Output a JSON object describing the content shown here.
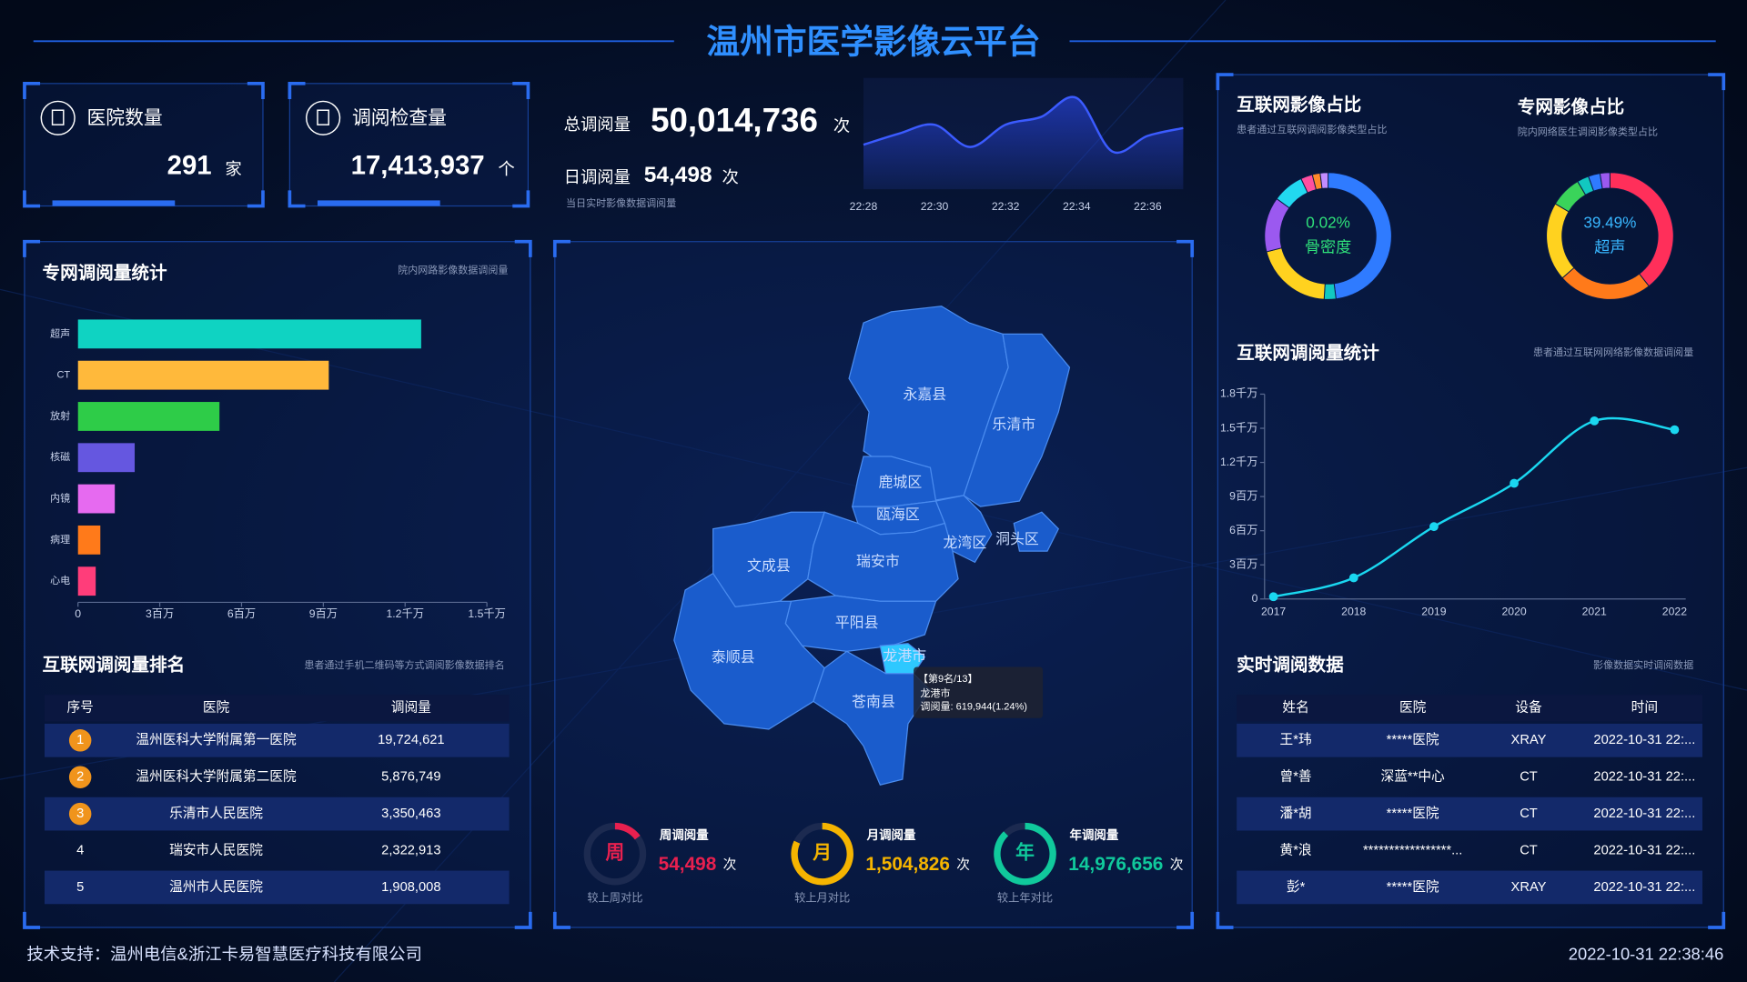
{
  "header": {
    "title": "温州市医学影像云平台"
  },
  "cards": [
    {
      "label": "医院数量",
      "value": "291",
      "unit": "家"
    },
    {
      "label": "调阅检查量",
      "value": "17,413,937",
      "unit": "个"
    }
  ],
  "totals": {
    "total_label": "总调阅量",
    "total_value": "50,014,736",
    "total_unit": "次",
    "daily_label": "日调阅量",
    "daily_value": "54,498",
    "daily_unit": "次",
    "note": "当日实时影像数据调阅量"
  },
  "chart_data": [
    {
      "type": "area",
      "categories": [
        "22:28",
        null,
        "22:30",
        null,
        "22:32",
        null,
        "22:34",
        null,
        "22:36",
        null
      ],
      "values": [
        20,
        30,
        38,
        18,
        38,
        45,
        62,
        14,
        28,
        35
      ],
      "ylim": [
        0,
        70
      ],
      "color": "#3b5bff"
    },
    {
      "type": "bar",
      "orientation": "horizontal",
      "title": "专网调阅量统计",
      "subtitle": "院内网路影像数据调阅量",
      "categories": [
        "超声",
        "CT",
        "放射",
        "核磁",
        "内镜",
        "病理",
        "心电"
      ],
      "values": [
        12590000,
        9200000,
        5190000,
        2080000,
        1350000,
        820000,
        650000
      ],
      "colors": [
        "#0fd3c2",
        "#ffb93b",
        "#2ecc48",
        "#6557e0",
        "#e66af0",
        "#ff7a1a",
        "#ff3d7a"
      ],
      "xlim": [
        0,
        15000000
      ],
      "xticks": [
        0,
        {
          "value": 3000000,
          "label": "3百万"
        },
        {
          "value": 6000000,
          "label": "6百万"
        },
        {
          "value": 9000000,
          "label": "9百万"
        },
        {
          "value": 12000000,
          "label": "1.2千万"
        },
        {
          "value": 15000000,
          "label": "1.5千万"
        }
      ]
    },
    {
      "type": "pie",
      "title": "互联网影像占比",
      "subtitle": "患者通过互联网调阅影像类型占比",
      "center_value": "0.02%",
      "center_label": "骨密度",
      "values": [
        48,
        3,
        20,
        14,
        8,
        3,
        2,
        2
      ],
      "colors": [
        "#2f7bff",
        "#12c8c0",
        "#ffd21f",
        "#9b59f0",
        "#22d8f0",
        "#ff4fa0",
        "#ff8a2a",
        "#c28cff"
      ]
    },
    {
      "type": "pie",
      "title": "专网影像占比",
      "subtitle": "院内网络医生调阅影像类型占比",
      "center_value": "39.49%",
      "center_label": "超声",
      "values": [
        39.49,
        24,
        20,
        8,
        3,
        3,
        2.51
      ],
      "colors": [
        "#ff2f5a",
        "#ff7a1a",
        "#ffd21f",
        "#3ad45a",
        "#12c8c0",
        "#2f7bff",
        "#9b59f0"
      ]
    },
    {
      "type": "line",
      "title": "互联网调阅量统计",
      "subtitle": "患者通过互联网网络影像数据调阅量",
      "categories": [
        "2017",
        "2018",
        "2019",
        "2020",
        "2021",
        "2022"
      ],
      "values": [
        200000,
        1860000,
        6360000,
        10170000,
        15650000,
        14870000
      ],
      "color": "#1ad7f0",
      "ylim": [
        0,
        18000000
      ],
      "yticks": [
        0,
        {
          "value": 3000000,
          "label": "3百万"
        },
        {
          "value": 6000000,
          "label": "6百万"
        },
        {
          "value": 9000000,
          "label": "9百万"
        },
        {
          "value": 12000000,
          "label": "1.2千万"
        },
        {
          "value": 15000000,
          "label": "1.5千万"
        },
        {
          "value": 18000000,
          "label": "1.8千万"
        }
      ]
    }
  ],
  "map": {
    "regions": [
      "永嘉县",
      "乐清市",
      "鹿城区",
      "瓯海区",
      "龙湾区",
      "洞头区",
      "文成县",
      "瑞安市",
      "平阳县",
      "泰顺县",
      "龙港市",
      "苍南县"
    ],
    "highlighted_region": 10,
    "tooltip": {
      "rank": "【第9名/13】",
      "name": "龙港市",
      "value": "调阅量: 619,944(1.24%)"
    }
  },
  "gauges": [
    {
      "char": "周",
      "label": "周调阅量",
      "value": "54,498",
      "unit": "次",
      "compare": "较上周对比",
      "color": "#e8204f",
      "ratio": 15
    },
    {
      "char": "月",
      "label": "月调阅量",
      "value": "1,504,826",
      "unit": "次",
      "compare": "较上月对比",
      "color": "#f5b400",
      "ratio": 82
    },
    {
      "char": "年",
      "label": "年调阅量",
      "value": "14,976,656",
      "unit": "次",
      "compare": "较上年对比",
      "color": "#10c99c",
      "ratio": 88
    }
  ],
  "ranking": {
    "title": "互联网调阅量排名",
    "subtitle": "患者通过手机二维码等方式调阅影像数据排名",
    "columns": [
      "序号",
      "医院",
      "调阅量"
    ],
    "rows": [
      [
        "1",
        "温州医科大学附属第一医院",
        "19,724,621"
      ],
      [
        "2",
        "温州医科大学附属第二医院",
        "5,876,749"
      ],
      [
        "3",
        "乐清市人民医院",
        "3,350,463"
      ],
      [
        "4",
        "瑞安市人民医院",
        "2,322,913"
      ],
      [
        "5",
        "温州市人民医院",
        "1,908,008"
      ]
    ]
  },
  "realtime": {
    "title": "实时调阅数据",
    "subtitle": "影像数据实时调阅数据",
    "columns": [
      "姓名",
      "医院",
      "设备",
      "时间"
    ],
    "rows": [
      [
        "王*玮",
        "*****医院",
        "XRAY",
        "2022-10-31 22:..."
      ],
      [
        "曾*善",
        "深蓝**中心",
        "CT",
        "2022-10-31 22:..."
      ],
      [
        "潘*胡",
        "*****医院",
        "CT",
        "2022-10-31 22:..."
      ],
      [
        "黄*浪",
        "*****************...",
        "CT",
        "2022-10-31 22:..."
      ],
      [
        "彭*",
        "*****医院",
        "XRAY",
        "2022-10-31 22:..."
      ]
    ]
  },
  "footer": {
    "support": "技术支持：温州电信&浙江卡易智慧医疗科技有限公司",
    "time": "2022-10-31 22:38:46"
  }
}
